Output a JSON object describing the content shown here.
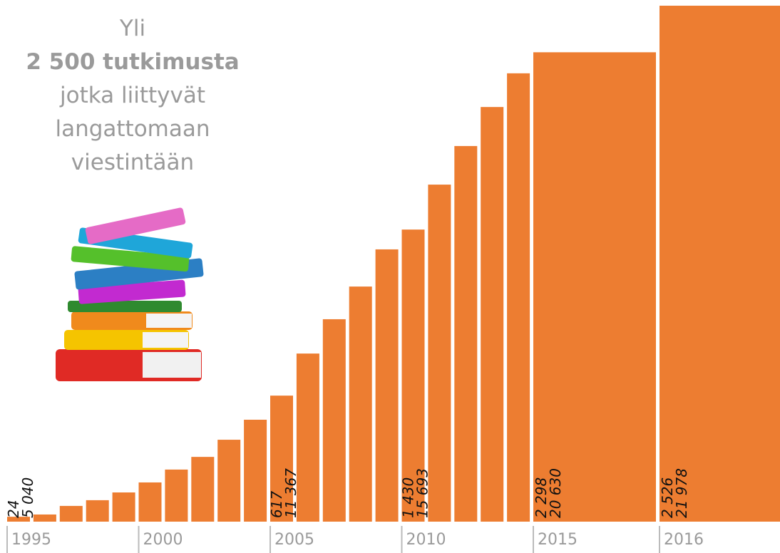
{
  "chart_data": {
    "type": "bar",
    "title_lines": [
      "Yli",
      "2 500 tutkimusta",
      "jotka liittyvät",
      "langattomaan",
      "viestintään"
    ],
    "categories": [
      "1995",
      null,
      null,
      null,
      null,
      "2000",
      null,
      null,
      null,
      null,
      "2005",
      null,
      null,
      null,
      null,
      "2010",
      null,
      null,
      null,
      null,
      "2015",
      "2016"
    ],
    "values": [
      24,
      35,
      77,
      105,
      143,
      192,
      255,
      317,
      401,
      499,
      617,
      823,
      991,
      1151,
      1333,
      1430,
      1650,
      1839,
      2030,
      2195,
      2298,
      2526
    ],
    "value_labels": [
      "24",
      null,
      null,
      null,
      null,
      null,
      null,
      null,
      null,
      null,
      "617",
      null,
      null,
      null,
      null,
      "1 430",
      null,
      null,
      null,
      null,
      "2 298",
      "2 526"
    ],
    "secondary_labels": [
      "5 040",
      null,
      null,
      null,
      null,
      null,
      null,
      null,
      null,
      null,
      "11 367",
      null,
      null,
      null,
      null,
      "15 693",
      null,
      null,
      null,
      null,
      "20 630",
      "21 978"
    ],
    "color": "#ED7D31",
    "ylim": [
      0,
      2526
    ]
  }
}
